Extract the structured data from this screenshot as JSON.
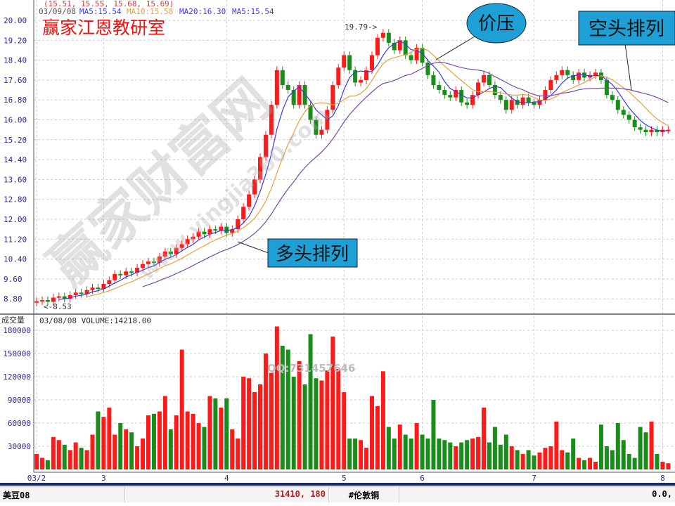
{
  "header": {
    "ohlc_line": "(15.51, 15.55, 15.68, 15.69)",
    "date": "03/09/08",
    "ma5": "MA5:15.54",
    "ma10": "MA10:15.58",
    "ma20": "MA20:16.30",
    "ma5b": "MA5:15.54",
    "title": "赢家江恩教研室"
  },
  "annotations": {
    "peak": "19.79->",
    "low": "<-8.53",
    "price_pressure": "价压",
    "bearish": "空头排列",
    "bullish": "多头排列"
  },
  "watermark": {
    "brand": "赢家财富网",
    "url": "www.yingjia360.com",
    "qq": "QQ:731457646"
  },
  "volume_panel": {
    "label": "成交量",
    "header": "03/08/08 VOLUME:14218.00"
  },
  "status_bar": {
    "symbol": "美豆08",
    "value": "31410, 180",
    "symbol2": "#伦敦铜",
    "value2": "0.0,"
  },
  "colors": {
    "up": "#ff1a1a",
    "down": "#1a8c1a",
    "ma5": "#3a3ae0",
    "ma10": "#e8a040",
    "ma20": "#7a4aa8",
    "callout": "#1e9fd6"
  },
  "chart_data": [
    {
      "type": "candlestick",
      "ylim": [
        8.4,
        20.3
      ],
      "yticks": [
        "20.00",
        "19.20",
        "18.40",
        "17.60",
        "16.80",
        "16.00",
        "15.20",
        "14.40",
        "13.60",
        "12.80",
        "12.00",
        "11.20",
        "10.40",
        "9.60",
        "8.80"
      ],
      "xticks": [
        {
          "label": "03/2",
          "index": 0
        },
        {
          "label": "3",
          "index": 12
        },
        {
          "label": "4",
          "index": 34
        },
        {
          "label": "5",
          "index": 55
        },
        {
          "label": "6",
          "index": 69
        },
        {
          "label": "7",
          "index": 89
        },
        {
          "label": "8",
          "index": 112
        }
      ],
      "close": [
        8.7,
        8.75,
        8.68,
        8.85,
        8.9,
        8.8,
        8.95,
        9.05,
        9.0,
        9.15,
        9.25,
        9.2,
        9.4,
        9.55,
        9.8,
        9.75,
        9.9,
        9.85,
        10.05,
        10.2,
        10.3,
        10.25,
        10.5,
        10.7,
        10.6,
        10.85,
        11.0,
        11.2,
        11.3,
        11.5,
        11.4,
        11.6,
        11.55,
        11.7,
        11.45,
        11.6,
        12.0,
        12.5,
        13.0,
        13.6,
        14.5,
        15.4,
        16.6,
        18.0,
        17.4,
        17.2,
        16.6,
        17.4,
        16.6,
        16.0,
        15.4,
        15.6,
        16.4,
        17.4,
        18.1,
        18.6,
        18.0,
        17.5,
        17.6,
        18.0,
        18.6,
        19.3,
        19.5,
        19.1,
        18.8,
        19.2,
        18.6,
        18.4,
        18.9,
        18.3,
        17.8,
        17.4,
        17.2,
        17.0,
        16.9,
        17.2,
        16.7,
        16.6,
        17.0,
        17.5,
        17.8,
        17.4,
        17.0,
        16.8,
        16.4,
        16.8,
        16.6,
        16.9,
        16.7,
        16.6,
        16.8,
        17.2,
        17.6,
        17.8,
        18.0,
        17.8,
        17.6,
        17.9,
        17.7,
        17.8,
        17.9,
        17.6,
        17.0,
        16.8,
        16.4,
        16.2,
        16.0,
        15.7,
        15.6,
        15.5,
        15.6,
        15.5,
        15.6,
        15.6
      ],
      "series": [
        {
          "name": "MA5",
          "period": 5
        },
        {
          "name": "MA10",
          "period": 10
        },
        {
          "name": "MA20",
          "period": 20
        }
      ]
    },
    {
      "type": "bar",
      "ylabel": "成交量",
      "ylim": [
        0,
        190000
      ],
      "yticks": [
        "180000",
        "150000",
        "120000",
        "90000",
        "60000",
        "30000"
      ],
      "values": [
        20000,
        15000,
        12000,
        42000,
        38000,
        32000,
        25000,
        35000,
        28000,
        25000,
        45000,
        75000,
        68000,
        80000,
        45000,
        60000,
        52000,
        48000,
        30000,
        40000,
        70000,
        72000,
        75000,
        95000,
        52000,
        70000,
        155000,
        75000,
        72000,
        60000,
        55000,
        95000,
        92000,
        80000,
        92000,
        52000,
        40000,
        120000,
        118000,
        100000,
        110000,
        150000,
        125000,
        185000,
        160000,
        155000,
        120000,
        140000,
        110000,
        175000,
        118000,
        115000,
        128000,
        172000,
        130000,
        100000,
        40000,
        40000,
        38000,
        28000,
        95000,
        82000,
        127000,
        55000,
        40000,
        58000,
        45000,
        40000,
        60000,
        45000,
        40000,
        90000,
        40000,
        38000,
        35000,
        30000,
        35000,
        38000,
        40000,
        42000,
        80000,
        35000,
        55000,
        32000,
        45000,
        30000,
        25000,
        20000,
        25000,
        18000,
        22000,
        28000,
        30000,
        62000,
        25000,
        22000,
        40000,
        15000,
        12000,
        15000,
        10000,
        58000,
        30000,
        25000,
        60000,
        38000,
        20000,
        15000,
        55000,
        48000,
        62000,
        20000,
        10000,
        8000
      ]
    }
  ]
}
